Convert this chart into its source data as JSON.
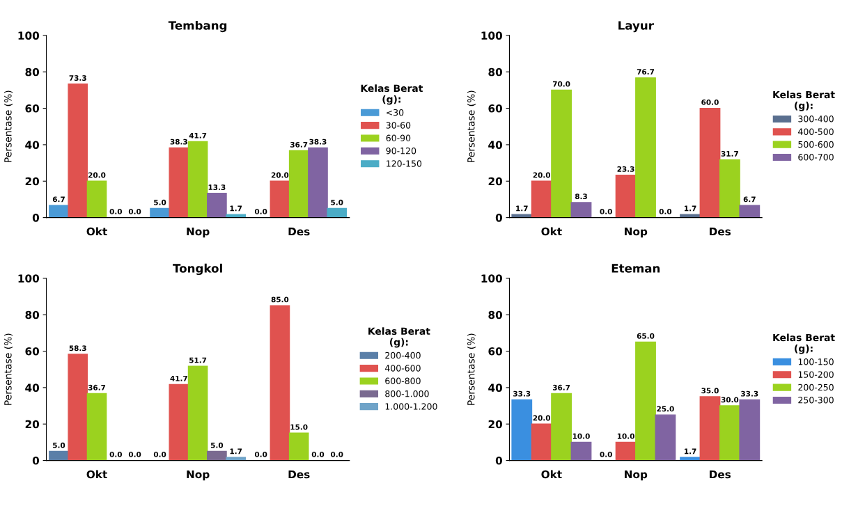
{
  "chart_data": [
    {
      "type": "bar",
      "title": "Tembang",
      "ylabel": "Persentase (%)",
      "legend_title": "Kelas Berat\n(g):",
      "legend": "right",
      "categories": [
        "Okt",
        "Nop",
        "Des"
      ],
      "ylim": [
        0,
        100
      ],
      "yticks": [
        0,
        20,
        40,
        60,
        80,
        100
      ],
      "grid": false,
      "series": [
        {
          "name": "<30",
          "color": "#4a9ad6",
          "values": [
            6.7,
            5.0,
            0.0
          ],
          "value_labels": [
            "6.7",
            "5.0",
            "0.0"
          ]
        },
        {
          "name": "30-60",
          "color": "#e0524f",
          "values": [
            73.3,
            38.3,
            20.0
          ],
          "value_labels": [
            "73.3",
            "38.3",
            "20.0"
          ]
        },
        {
          "name": "60-90",
          "color": "#9bd21f",
          "values": [
            20.0,
            41.7,
            36.7
          ],
          "value_labels": [
            "20.0",
            "41.7",
            "36.7"
          ]
        },
        {
          "name": "90-120",
          "color": "#8064a2",
          "values": [
            0.0,
            13.3,
            38.3
          ],
          "value_labels": [
            "0.0",
            "13.3",
            "38.3"
          ]
        },
        {
          "name": "120-150",
          "color": "#4bacc6",
          "values": [
            0.0,
            1.7,
            5.0
          ],
          "value_labels": [
            "0.0",
            "1.7",
            "5.0"
          ]
        }
      ]
    },
    {
      "type": "bar",
      "title": "Layur",
      "ylabel": "Persentase (%)",
      "legend_title": "Kelas Berat\n(g):",
      "legend": "right",
      "categories": [
        "Okt",
        "Nop",
        "Des"
      ],
      "ylim": [
        0,
        100
      ],
      "yticks": [
        0,
        20,
        40,
        60,
        80,
        100
      ],
      "grid": false,
      "series": [
        {
          "name": "300-400",
          "color": "#5a6f8f",
          "values": [
            1.7,
            0.0,
            1.7
          ],
          "value_labels": [
            "1.7",
            "0.0",
            "1.7"
          ]
        },
        {
          "name": "400-500",
          "color": "#e0524f",
          "values": [
            20.0,
            23.3,
            60.0
          ],
          "value_labels": [
            "20.0",
            "23.3",
            "60.0"
          ]
        },
        {
          "name": "500-600",
          "color": "#9bd21f",
          "values": [
            70.0,
            76.7,
            31.7
          ],
          "value_labels": [
            "70.0",
            "76.7",
            "31.7"
          ]
        },
        {
          "name": "600-700",
          "color": "#8064a2",
          "values": [
            8.3,
            0.0,
            6.7
          ],
          "value_labels": [
            "8.3",
            "0.0",
            "6.7"
          ]
        }
      ]
    },
    {
      "type": "bar",
      "title": "Tongkol",
      "ylabel": "Persentase (%)",
      "legend_title": "Kelas Berat\n(g):",
      "legend": "right",
      "categories": [
        "Okt",
        "Nop",
        "Des"
      ],
      "ylim": [
        0,
        100
      ],
      "yticks": [
        0,
        20,
        40,
        60,
        80,
        100
      ],
      "grid": false,
      "series": [
        {
          "name": "200-400",
          "color": "#5a7fa8",
          "values": [
            5.0,
            0.0,
            0.0
          ],
          "value_labels": [
            "5.0",
            "0.0",
            "0.0"
          ]
        },
        {
          "name": "400-600",
          "color": "#e0524f",
          "values": [
            58.3,
            41.7,
            85.0
          ],
          "value_labels": [
            "58.3",
            "41.7",
            "85.0"
          ]
        },
        {
          "name": "600-800",
          "color": "#9bd21f",
          "values": [
            36.7,
            51.7,
            15.0
          ],
          "value_labels": [
            "36.7",
            "51.7",
            "15.0"
          ]
        },
        {
          "name": "800-1.000",
          "color": "#7a6a90",
          "values": [
            0.0,
            5.0,
            0.0
          ],
          "value_labels": [
            "0.0",
            "5.0",
            "0.0"
          ]
        },
        {
          "name": "1.000-1.200",
          "color": "#6fa3c8",
          "values": [
            0.0,
            1.7,
            0.0
          ],
          "value_labels": [
            "0.0",
            "1.7",
            "0.0"
          ]
        }
      ]
    },
    {
      "type": "bar",
      "title": "Eteman",
      "ylabel": "Persentase (%)",
      "legend_title": "Kelas Berat\n(g):",
      "legend": "right",
      "categories": [
        "Okt",
        "Nop",
        "Des"
      ],
      "ylim": [
        0,
        100
      ],
      "yticks": [
        0,
        20,
        40,
        60,
        80,
        100
      ],
      "grid": false,
      "series": [
        {
          "name": "100-150",
          "color": "#3a8fe0",
          "values": [
            33.3,
            0.0,
            1.7
          ],
          "value_labels": [
            "33.3",
            "0.0",
            "1.7"
          ]
        },
        {
          "name": "150-200",
          "color": "#e0524f",
          "values": [
            20.0,
            10.0,
            35.0
          ],
          "value_labels": [
            "20.0",
            "10.0",
            "35.0"
          ]
        },
        {
          "name": "200-250",
          "color": "#9bd21f",
          "values": [
            36.7,
            65.0,
            30.0
          ],
          "value_labels": [
            "36.7",
            "65.0",
            "30.0"
          ]
        },
        {
          "name": "250-300",
          "color": "#8064a2",
          "values": [
            10.0,
            25.0,
            33.3
          ],
          "value_labels": [
            "10.0",
            "25.0",
            "33.3"
          ]
        }
      ]
    }
  ]
}
